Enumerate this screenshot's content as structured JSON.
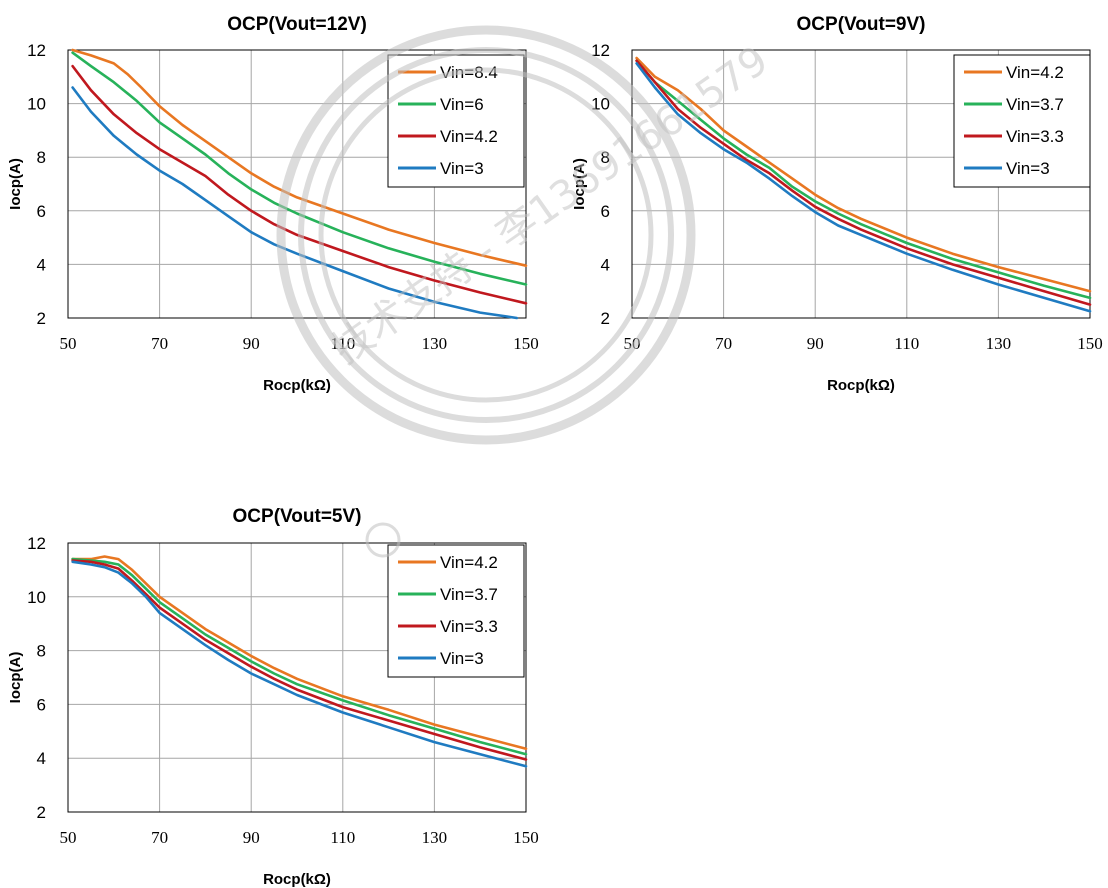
{
  "watermark": {
    "text": "技术支持 - 李13691661579"
  },
  "colors": {
    "orange": "#E87722",
    "green": "#27B25A",
    "red": "#C0181E",
    "blue": "#1F7BC1"
  },
  "chart_data": [
    {
      "type": "line",
      "title": "OCP(Vout=12V)",
      "xlabel": "Rocp(kΩ)",
      "ylabel": "Iocp(A)",
      "xlim": [
        50,
        150
      ],
      "ylim": [
        2,
        12
      ],
      "xticks": [
        "50",
        "70",
        "90",
        "110",
        "130",
        "150"
      ],
      "yticks": [
        "2",
        "4",
        "6",
        "8",
        "10",
        "12"
      ],
      "legend_position": "top-right",
      "series": [
        {
          "name": "Vin=8.4",
          "color": "#E87722",
          "x": [
            51,
            55,
            60,
            63,
            66,
            70,
            75,
            80,
            85,
            90,
            95,
            100,
            110,
            120,
            130,
            140,
            150
          ],
          "y": [
            12,
            11.8,
            11.5,
            11.1,
            10.6,
            9.9,
            9.2,
            8.6,
            8.0,
            7.4,
            6.9,
            6.5,
            5.9,
            5.3,
            4.8,
            4.35,
            3.95
          ]
        },
        {
          "name": "Vin=6",
          "color": "#27B25A",
          "x": [
            51,
            55,
            60,
            65,
            70,
            75,
            80,
            85,
            90,
            95,
            100,
            110,
            120,
            130,
            140,
            150
          ],
          "y": [
            11.9,
            11.4,
            10.8,
            10.1,
            9.3,
            8.7,
            8.1,
            7.4,
            6.8,
            6.3,
            5.9,
            5.2,
            4.6,
            4.1,
            3.65,
            3.25
          ]
        },
        {
          "name": "Vin=4.2",
          "color": "#C0181E",
          "x": [
            51,
            55,
            60,
            65,
            70,
            75,
            80,
            85,
            90,
            95,
            100,
            110,
            120,
            130,
            140,
            150
          ],
          "y": [
            11.4,
            10.5,
            9.6,
            8.9,
            8.3,
            7.8,
            7.3,
            6.6,
            6.0,
            5.5,
            5.1,
            4.5,
            3.9,
            3.4,
            2.95,
            2.55
          ]
        },
        {
          "name": "Vin=3",
          "color": "#1F7BC1",
          "x": [
            51,
            55,
            60,
            65,
            70,
            75,
            80,
            85,
            90,
            95,
            100,
            110,
            120,
            130,
            140,
            148
          ],
          "y": [
            10.6,
            9.7,
            8.8,
            8.1,
            7.5,
            7.0,
            6.4,
            5.8,
            5.2,
            4.75,
            4.4,
            3.75,
            3.1,
            2.6,
            2.2,
            1.95
          ]
        }
      ]
    },
    {
      "type": "line",
      "title": "OCP(Vout=9V)",
      "xlabel": "Rocp(kΩ)",
      "ylabel": "Iocp(A)",
      "xlim": [
        50,
        150
      ],
      "ylim": [
        2,
        12
      ],
      "xticks": [
        "50",
        "70",
        "90",
        "110",
        "130",
        "150"
      ],
      "yticks": [
        "2",
        "4",
        "6",
        "8",
        "10",
        "12"
      ],
      "legend_position": "top-right",
      "series": [
        {
          "name": "Vin=4.2",
          "color": "#E87722",
          "x": [
            51,
            55,
            60,
            65,
            70,
            75,
            80,
            85,
            90,
            95,
            100,
            110,
            120,
            130,
            140,
            150
          ],
          "y": [
            11.7,
            11.0,
            10.5,
            9.8,
            9.0,
            8.4,
            7.8,
            7.2,
            6.6,
            6.1,
            5.7,
            5.0,
            4.4,
            3.9,
            3.45,
            3.0
          ]
        },
        {
          "name": "Vin=3.7",
          "color": "#27B25A",
          "x": [
            51,
            55,
            60,
            65,
            70,
            75,
            80,
            85,
            90,
            95,
            100,
            110,
            120,
            130,
            140,
            150
          ],
          "y": [
            11.6,
            10.8,
            10.1,
            9.4,
            8.7,
            8.1,
            7.6,
            6.9,
            6.35,
            5.9,
            5.5,
            4.8,
            4.2,
            3.7,
            3.2,
            2.75
          ]
        },
        {
          "name": "Vin=3.3",
          "color": "#C0181E",
          "x": [
            51,
            55,
            60,
            65,
            70,
            75,
            80,
            85,
            90,
            95,
            100,
            110,
            120,
            130,
            140,
            150
          ],
          "y": [
            11.6,
            10.8,
            9.8,
            9.1,
            8.5,
            7.9,
            7.4,
            6.75,
            6.15,
            5.7,
            5.3,
            4.6,
            4.0,
            3.5,
            3.0,
            2.5
          ]
        },
        {
          "name": "Vin=3",
          "color": "#1F7BC1",
          "x": [
            51,
            55,
            60,
            65,
            70,
            75,
            80,
            85,
            90,
            95,
            100,
            110,
            120,
            130,
            140,
            150
          ],
          "y": [
            11.5,
            10.6,
            9.6,
            8.9,
            8.3,
            7.8,
            7.2,
            6.55,
            5.95,
            5.45,
            5.1,
            4.4,
            3.8,
            3.25,
            2.75,
            2.25
          ]
        }
      ]
    },
    {
      "type": "line",
      "title": "OCP(Vout=5V)",
      "xlabel": "Rocp(kΩ)",
      "ylabel": "Iocp(A)",
      "xlim": [
        50,
        150
      ],
      "ylim": [
        2,
        12
      ],
      "xticks": [
        "50",
        "70",
        "90",
        "110",
        "130",
        "150"
      ],
      "yticks": [
        "2",
        "4",
        "6",
        "8",
        "10",
        "12"
      ],
      "legend_position": "top-right",
      "series": [
        {
          "name": "Vin=4.2",
          "color": "#E87722",
          "x": [
            51,
            55,
            58,
            61,
            64,
            67,
            70,
            75,
            80,
            85,
            90,
            95,
            100,
            110,
            120,
            130,
            140,
            150
          ],
          "y": [
            11.4,
            11.4,
            11.5,
            11.4,
            11.0,
            10.5,
            10.0,
            9.4,
            8.8,
            8.3,
            7.8,
            7.35,
            6.95,
            6.3,
            5.8,
            5.25,
            4.8,
            4.35
          ]
        },
        {
          "name": "Vin=3.7",
          "color": "#27B25A",
          "x": [
            51,
            55,
            58,
            61,
            64,
            67,
            70,
            75,
            80,
            85,
            90,
            95,
            100,
            110,
            120,
            130,
            140,
            150
          ],
          "y": [
            11.4,
            11.35,
            11.3,
            11.2,
            10.8,
            10.3,
            9.8,
            9.2,
            8.6,
            8.1,
            7.6,
            7.15,
            6.75,
            6.15,
            5.6,
            5.1,
            4.6,
            4.15
          ]
        },
        {
          "name": "Vin=3.3",
          "color": "#C0181E",
          "x": [
            51,
            55,
            58,
            61,
            64,
            67,
            70,
            75,
            80,
            85,
            90,
            95,
            100,
            110,
            120,
            130,
            140,
            150
          ],
          "y": [
            11.35,
            11.3,
            11.2,
            11.05,
            10.6,
            10.1,
            9.6,
            9.0,
            8.4,
            7.9,
            7.4,
            6.95,
            6.55,
            5.9,
            5.4,
            4.9,
            4.4,
            3.95
          ]
        },
        {
          "name": "Vin=3",
          "color": "#1F7BC1",
          "x": [
            51,
            55,
            58,
            61,
            64,
            67,
            70,
            75,
            80,
            85,
            90,
            95,
            100,
            110,
            120,
            130,
            140,
            150
          ],
          "y": [
            11.3,
            11.2,
            11.1,
            10.9,
            10.5,
            10.0,
            9.4,
            8.8,
            8.2,
            7.65,
            7.15,
            6.75,
            6.35,
            5.7,
            5.15,
            4.6,
            4.15,
            3.7
          ]
        }
      ]
    }
  ]
}
